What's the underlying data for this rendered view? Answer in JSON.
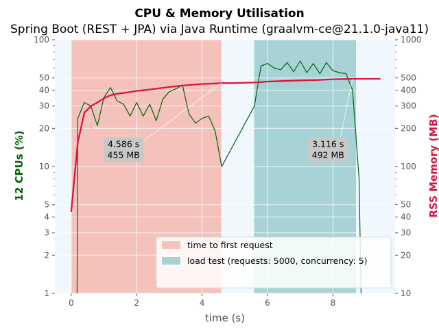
{
  "chart_data": {
    "type": "line",
    "title": "CPU & Memory Utilisation",
    "subtitle": "Spring Boot (REST + JPA) via Java Runtime (graalvm-ce@21.1.0-java11)",
    "xlabel": "time (s)",
    "ylabel_left": "12 CPUs (%)",
    "ylabel_right": "RSS Memory (MB)",
    "xlim": [
      -0.5,
      9.9
    ],
    "x_ticks": [
      0,
      2,
      4,
      6,
      8
    ],
    "ylim_left": [
      1,
      100
    ],
    "ylim_right": [
      10,
      1000
    ],
    "y_scale": "log",
    "y_ticks_left": [
      1,
      2,
      3,
      4,
      5,
      10,
      20,
      30,
      40,
      50,
      100
    ],
    "y_ticks_right": [
      10,
      20,
      30,
      40,
      50,
      100,
      200,
      300,
      400,
      500,
      1000
    ],
    "background_color": "#f0f7ff",
    "phases": [
      {
        "name": "time to first request",
        "start": 0.0,
        "end": 4.586,
        "color": "#f4c2bb"
      },
      {
        "name": "load test (requests: 5000, concurrency: 5)",
        "start": 5.59,
        "end": 8.706,
        "color": "#a8d3d6"
      }
    ],
    "series": [
      {
        "name": "12 CPUs (%)",
        "axis": "left",
        "color": "#006400",
        "x": [
          0.18,
          0.2,
          0.4,
          0.6,
          0.8,
          1.0,
          1.2,
          1.4,
          1.6,
          1.8,
          2.0,
          2.2,
          2.4,
          2.6,
          2.8,
          3.0,
          3.2,
          3.4,
          3.6,
          3.8,
          4.0,
          4.2,
          4.4,
          4.6,
          5.6,
          5.8,
          6.0,
          6.2,
          6.4,
          6.6,
          6.8,
          7.0,
          7.2,
          7.4,
          7.6,
          7.8,
          8.0,
          8.2,
          8.4,
          8.6,
          8.8,
          8.86
        ],
        "y": [
          1,
          24,
          32,
          30,
          21,
          35,
          42,
          33,
          31,
          25,
          32,
          25,
          31,
          23,
          34,
          39,
          41,
          44,
          26,
          22,
          24,
          25,
          19,
          10,
          30,
          62,
          65,
          60,
          58,
          66,
          56,
          68,
          55,
          65,
          54,
          66,
          57,
          55,
          54,
          40,
          8,
          1
        ]
      },
      {
        "name": "RSS Memory (MB)",
        "axis": "right",
        "color": "#dc143c",
        "x": [
          0.0,
          0.2,
          0.4,
          0.6,
          0.8,
          1.0,
          1.2,
          1.4,
          1.6,
          1.8,
          2.0,
          2.4,
          2.8,
          3.2,
          3.6,
          4.0,
          4.4,
          4.6,
          5.0,
          5.6,
          6.0,
          6.4,
          7.0,
          7.6,
          8.0,
          8.4,
          8.7,
          9.2,
          9.45
        ],
        "y": [
          44,
          155,
          265,
          300,
          320,
          345,
          365,
          375,
          380,
          388,
          395,
          405,
          418,
          430,
          440,
          448,
          452,
          455,
          456,
          460,
          468,
          472,
          478,
          482,
          488,
          490,
          492,
          492,
          492
        ]
      }
    ],
    "annotations": [
      {
        "lines": [
          "4.586 s",
          "455 MB"
        ],
        "x": 1.6,
        "y_right": 120
      },
      {
        "lines": [
          "3.116 s",
          "492 MB"
        ],
        "x": 7.85,
        "y_right": 120
      }
    ],
    "legend": {
      "position": "bottom-right",
      "entries": [
        "time to first request",
        "load test (requests: 5000, concurrency: 5)"
      ]
    },
    "grid": true
  }
}
